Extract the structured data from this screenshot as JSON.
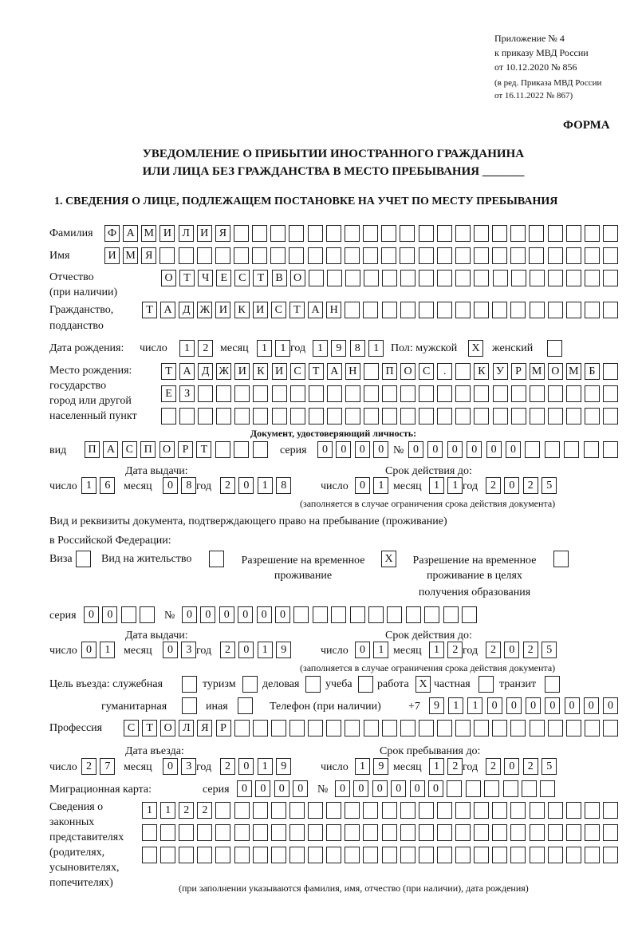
{
  "header": {
    "appendix": [
      "Приложение № 4",
      "к приказу МВД России",
      "от 10.12.2020 № 856"
    ],
    "revision": [
      "(в ред. Приказа МВД России",
      "от 16.11.2022 № 867)"
    ],
    "form_label": "ФОРМА",
    "title_line1": "УВЕДОМЛЕНИЕ О ПРИБЫТИИ ИНОСТРАННОГО ГРАЖДАНИНА",
    "title_line2": "ИЛИ ЛИЦА БЕЗ ГРАЖДАНСТВА В МЕСТО ПРЕБЫВАНИЯ _______",
    "section1": "1. СВЕДЕНИЯ О ЛИЦЕ, ПОДЛЕЖАЩЕМ ПОСТАНОВКЕ НА УЧЕТ ПО МЕСТУ ПРЕБЫВАНИЯ"
  },
  "labels": {
    "surname": "Фамилия",
    "name": "Имя",
    "patronymic": "Отчество",
    "patronymic2": "(при наличии)",
    "citizenship": "Гражданство,",
    "citizenship2": "подданство",
    "birth_date": "Дата рождения:",
    "day": "число",
    "month": "месяц",
    "year": "год",
    "sex": "Пол: мужской",
    "female": "женский",
    "birth_place": [
      "Место рождения:",
      "государство",
      "город или другой",
      "населенный пункт"
    ],
    "id_doc": "Документ, удостоверяющий личность:",
    "kind": "вид",
    "series": "серия",
    "number": "№",
    "issue_date": "Дата выдачи:",
    "valid_until": "Срок действия до:",
    "validity_note": "(заполняется в случае ограничения срока действия документа)",
    "stay_doc1": "Вид и реквизиты документа, подтверждающего право на пребывание (проживание)",
    "stay_doc2": "в Российской Федерации:",
    "visa": "Виза",
    "residence": "Вид на жительство",
    "trp": [
      "Разрешение на временное",
      "проживание"
    ],
    "trp_edu": [
      "Разрешение на временное",
      "проживание в целях",
      "получения образования"
    ],
    "purpose": "Цель въезда: служебная",
    "tourism": "туризм",
    "business": "деловая",
    "study": "учеба",
    "work": "работа",
    "private": "частная",
    "transit": "транзит",
    "humanitarian": "гуманитарная",
    "other": "иная",
    "phone": "Телефон (при наличии)",
    "phone_prefix": "+7",
    "profession": "Профессия",
    "entry_date": "Дата въезда:",
    "stay_until": "Срок пребывания до:",
    "migration_card": "Миграционная карта:",
    "representatives": [
      "Сведения о",
      "законных",
      "представителях",
      "(родителях,",
      "усыновителях,",
      "попечителях)"
    ],
    "representatives_note": "(при заполнении указываются фамилия, имя, отчество (при наличии), дата рождения)"
  },
  "values": {
    "surname": "ФАМИЛИЯ",
    "name": "ИМЯ",
    "patronymic": "ОТЧЕСТВО",
    "citizenship": "ТАДЖИКИСТАН",
    "birth_day": "12",
    "birth_month": "11",
    "birth_year": "1981",
    "sex_male": "X",
    "sex_female": "",
    "birth_place": [
      "ТАДЖИКИСТАН ПОС. КУРМОМБ",
      "ЕЗ",
      ""
    ],
    "id_kind": "ПАСПОРТ",
    "id_series": "0000",
    "id_number": "000000",
    "id_issue_day": "16",
    "id_issue_month": "08",
    "id_issue_year": "2018",
    "id_valid_day": "01",
    "id_valid_month": "11",
    "id_valid_year": "2025",
    "visa": "",
    "residence": "",
    "trp": "X",
    "trp_edu": "",
    "stay_series": "00",
    "stay_number": "000000",
    "stay_issue_day": "01",
    "stay_issue_month": "03",
    "stay_issue_year": "2019",
    "stay_valid_day": "01",
    "stay_valid_month": "12",
    "stay_valid_year": "2025",
    "purpose_official": "",
    "purpose_tourism": "",
    "purpose_business": "",
    "purpose_study": "",
    "purpose_work": "X",
    "purpose_private": "",
    "purpose_transit": "",
    "purpose_humanitarian": "",
    "purpose_other": "",
    "phone": "9110000000",
    "profession": "СТОЛЯР",
    "entry_day": "27",
    "entry_month": "03",
    "entry_year": "2019",
    "stay_until_day": "19",
    "stay_until_month": "12",
    "stay_until_year": "2025",
    "mc_series": "0000",
    "mc_number": "000000",
    "representatives": [
      "1122",
      "",
      ""
    ]
  }
}
